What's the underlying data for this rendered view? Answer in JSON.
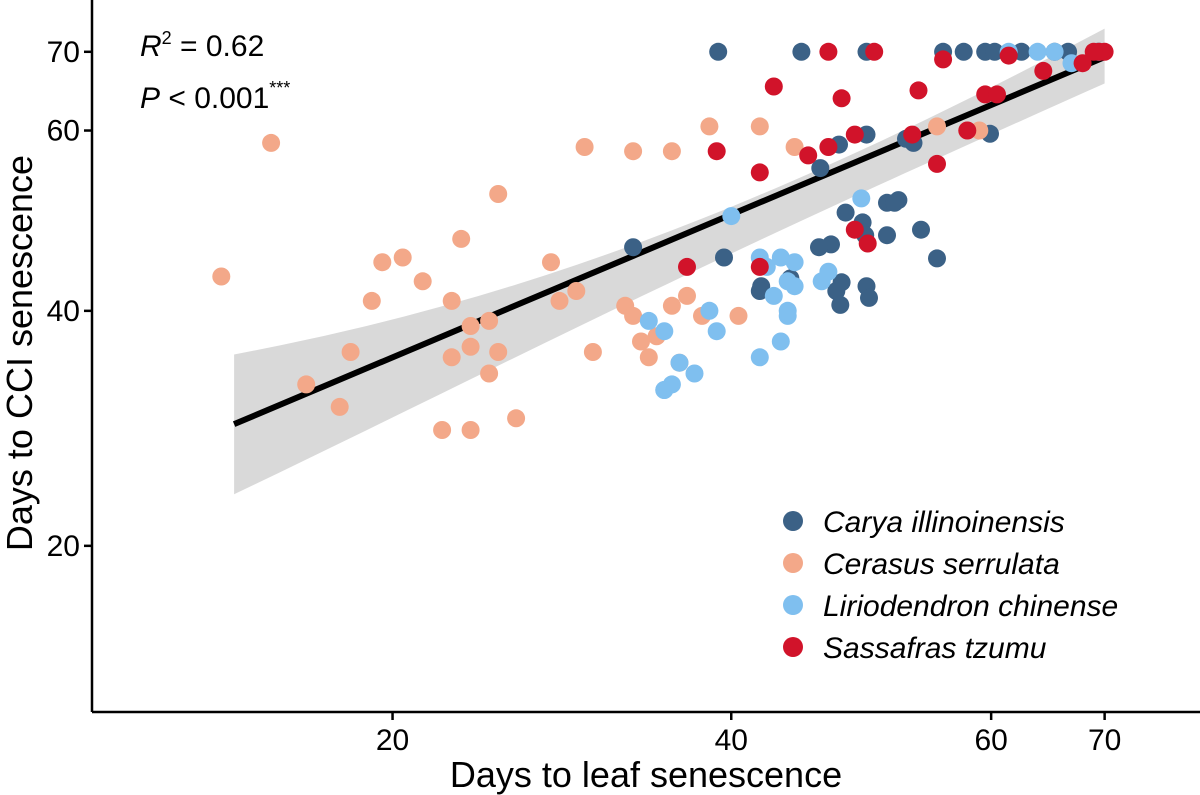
{
  "chart_data": {
    "type": "scatter",
    "xlabel": "Days to leaf senescence",
    "ylabel": "Days to CCI senescence",
    "x_scale": "sqrt",
    "y_scale": "sqrt",
    "xlim": [
      8,
      79
    ],
    "ylim": [
      10,
      77
    ],
    "x_ticks": [
      20,
      40,
      60,
      70
    ],
    "y_ticks": [
      20,
      40,
      60,
      70
    ],
    "grid": false,
    "legend_position": "bottom-right",
    "annotations": {
      "r2_symbol": "R",
      "r2_sup": "2",
      "r2_rest": " = 0.62",
      "p_symbol": "P",
      "p_rest": " < 0.001",
      "p_stars": "***"
    },
    "trend": {
      "x": [
        13,
        70
      ],
      "y": [
        29.5,
        69.3
      ],
      "ci_low": [
        26.5,
        67.5
      ],
      "ci_high": [
        32.8,
        71.3
      ]
    },
    "series": [
      {
        "name": "Carya illinoinensis",
        "color": "#3b6186",
        "points": [
          [
            39.1,
            70
          ],
          [
            45.0,
            70
          ],
          [
            49.9,
            70
          ],
          [
            56.0,
            70
          ],
          [
            57.7,
            70
          ],
          [
            59.5,
            70
          ],
          [
            60.3,
            70
          ],
          [
            62.6,
            70
          ],
          [
            65.5,
            70
          ],
          [
            66.7,
            70
          ],
          [
            69.4,
            70
          ],
          [
            47.8,
            58.3
          ],
          [
            49.9,
            59.5
          ],
          [
            53.0,
            59.0
          ],
          [
            53.6,
            58.5
          ],
          [
            59.9,
            59.6
          ],
          [
            46.4,
            55.5
          ],
          [
            51.5,
            51.5
          ],
          [
            52.4,
            51.8
          ],
          [
            52.1,
            51.5
          ],
          [
            48.3,
            50.4
          ],
          [
            49.6,
            49.3
          ],
          [
            49.8,
            47.9
          ],
          [
            51.5,
            47.9
          ],
          [
            54.2,
            48.5
          ],
          [
            47.2,
            46.9
          ],
          [
            46.3,
            46.6
          ],
          [
            33.5,
            46.6
          ],
          [
            39.5,
            45.5
          ],
          [
            55.5,
            45.4
          ],
          [
            42.1,
            42.5
          ],
          [
            42.0,
            42.0
          ],
          [
            44.2,
            43.3
          ],
          [
            48.0,
            42.9
          ],
          [
            47.6,
            42.0
          ],
          [
            49.9,
            42.5
          ],
          [
            50.1,
            41.3
          ],
          [
            47.9,
            40.6
          ]
        ]
      },
      {
        "name": "Cerasus serrulata",
        "color": "#f3a889",
        "points": [
          [
            14.5,
            58.5
          ],
          [
            12.5,
            43.5
          ],
          [
            19.5,
            45.0
          ],
          [
            20.5,
            45.5
          ],
          [
            21.5,
            43.0
          ],
          [
            19.0,
            41.0
          ],
          [
            23.5,
            47.5
          ],
          [
            25.5,
            52.5
          ],
          [
            23.0,
            41.0
          ],
          [
            24.0,
            38.5
          ],
          [
            25.0,
            39.0
          ],
          [
            24.0,
            36.5
          ],
          [
            25.5,
            36.0
          ],
          [
            23.0,
            35.5
          ],
          [
            25.0,
            34.0
          ],
          [
            18.0,
            36.0
          ],
          [
            16.0,
            33.0
          ],
          [
            17.5,
            31.0
          ],
          [
            22.5,
            29.0
          ],
          [
            24.0,
            29.0
          ],
          [
            26.5,
            30.0
          ],
          [
            28.5,
            45.0
          ],
          [
            29.0,
            41.0
          ],
          [
            30.0,
            42.0
          ],
          [
            30.5,
            58.0
          ],
          [
            31.0,
            36.0
          ],
          [
            33.0,
            40.5
          ],
          [
            33.5,
            39.5
          ],
          [
            34.0,
            37.0
          ],
          [
            34.5,
            35.5
          ],
          [
            35.0,
            37.5
          ],
          [
            36.0,
            40.5
          ],
          [
            33.5,
            57.5
          ],
          [
            36.0,
            57.5
          ],
          [
            37.0,
            41.5
          ],
          [
            38.0,
            39.5
          ],
          [
            36.5,
            35.0
          ],
          [
            38.5,
            60.5
          ],
          [
            40.5,
            39.5
          ],
          [
            42.0,
            60.5
          ],
          [
            44.5,
            58.0
          ],
          [
            55.5,
            60.5
          ],
          [
            58.0,
            60.0
          ],
          [
            59.0,
            60.0
          ]
        ]
      },
      {
        "name": "Liriodendron chinense",
        "color": "#7fbfef",
        "points": [
          [
            34.5,
            39.0
          ],
          [
            35.5,
            38.0
          ],
          [
            35.5,
            32.5
          ],
          [
            35.5,
            32.5
          ],
          [
            36.0,
            33.0
          ],
          [
            36.5,
            35.0
          ],
          [
            37.5,
            34.0
          ],
          [
            38.5,
            40.0
          ],
          [
            39.0,
            38.0
          ],
          [
            40.0,
            50.0
          ],
          [
            42.0,
            45.5
          ],
          [
            42.0,
            35.5
          ],
          [
            42.5,
            44.5
          ],
          [
            43.0,
            41.5
          ],
          [
            43.5,
            45.5
          ],
          [
            43.5,
            37.0
          ],
          [
            44.0,
            43.0
          ],
          [
            44.0,
            39.5
          ],
          [
            44.0,
            40.0
          ],
          [
            44.5,
            42.5
          ],
          [
            44.5,
            45.0
          ],
          [
            46.5,
            43.0
          ],
          [
            47.0,
            44.0
          ],
          [
            49.5,
            52.0
          ],
          [
            61.5,
            70.0
          ],
          [
            64.0,
            70.0
          ],
          [
            65.5,
            70.0
          ],
          [
            67.0,
            68.5
          ],
          [
            69.5,
            70.0
          ]
        ]
      },
      {
        "name": "Sassafras tzumu",
        "color": "#d1132a",
        "points": [
          [
            47.0,
            70.0
          ],
          [
            50.5,
            70.0
          ],
          [
            56.0,
            69.0
          ],
          [
            61.5,
            69.5
          ],
          [
            64.5,
            67.5
          ],
          [
            68.0,
            68.5
          ],
          [
            69.5,
            70.0
          ],
          [
            70.0,
            70.0
          ],
          [
            69.0,
            70.0
          ],
          [
            43.0,
            65.5
          ],
          [
            48.0,
            64.0
          ],
          [
            54.0,
            65.0
          ],
          [
            59.5,
            64.5
          ],
          [
            60.5,
            64.5
          ],
          [
            49.0,
            59.5
          ],
          [
            53.5,
            59.5
          ],
          [
            58.0,
            60.0
          ],
          [
            47.0,
            58.0
          ],
          [
            45.5,
            57.0
          ],
          [
            39.0,
            57.5
          ],
          [
            55.5,
            56.0
          ],
          [
            42.0,
            55.0
          ],
          [
            49.0,
            48.5
          ],
          [
            50.0,
            47.0
          ],
          [
            37.0,
            44.5
          ],
          [
            42.0,
            44.5
          ]
        ]
      }
    ]
  }
}
